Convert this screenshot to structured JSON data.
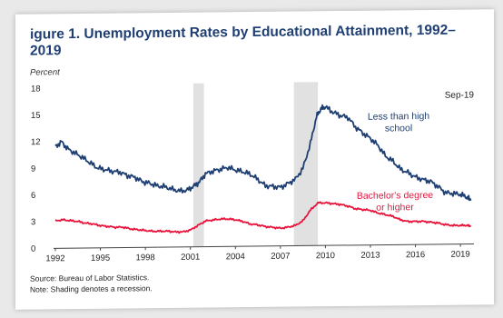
{
  "figure": {
    "title": "igure 1. Unemployment Rates by Educational Attainment, 1992–2019",
    "unit_label": "Percent",
    "source": "Source: Bureau of Labor Statistics.",
    "note": "Note: Shading denotes a recession."
  },
  "chart_data": {
    "type": "line",
    "title": "igure 1. Unemployment Rates by Educational Attainment, 1992–2019",
    "ylabel": "Percent",
    "xlabel": "",
    "ylim": [
      0,
      18
    ],
    "xlim": [
      1992,
      2019.9
    ],
    "y_ticks": [
      0,
      3,
      6,
      9,
      12,
      15,
      18
    ],
    "x_ticks": [
      1992,
      1995,
      1998,
      2001,
      2004,
      2007,
      2010,
      2013,
      2016,
      2019
    ],
    "grid": false,
    "legend": "inline labels",
    "recessions": [
      [
        2001.2,
        2001.9
      ],
      [
        2007.9,
        2009.5
      ]
    ],
    "annotation": "Sep-19",
    "series": [
      {
        "name": "Less than high school",
        "label_lines": [
          "Less than high",
          "school"
        ],
        "color": "#1f3f73",
        "points": [
          [
            1992.0,
            11.4
          ],
          [
            1992.4,
            12.0
          ],
          [
            1992.8,
            11.2
          ],
          [
            1993.3,
            10.7
          ],
          [
            1993.8,
            10.2
          ],
          [
            1994.3,
            9.6
          ],
          [
            1994.8,
            9.0
          ],
          [
            1995.3,
            8.8
          ],
          [
            1995.8,
            8.6
          ],
          [
            1996.3,
            8.5
          ],
          [
            1996.8,
            8.1
          ],
          [
            1997.3,
            7.9
          ],
          [
            1997.8,
            7.4
          ],
          [
            1998.3,
            7.2
          ],
          [
            1998.8,
            6.9
          ],
          [
            1999.3,
            6.8
          ],
          [
            1999.8,
            6.5
          ],
          [
            2000.3,
            6.3
          ],
          [
            2000.8,
            6.4
          ],
          [
            2001.2,
            6.8
          ],
          [
            2001.6,
            7.3
          ],
          [
            2002.0,
            8.2
          ],
          [
            2002.5,
            8.5
          ],
          [
            2003.0,
            8.7
          ],
          [
            2003.5,
            8.9
          ],
          [
            2004.0,
            8.6
          ],
          [
            2004.5,
            8.4
          ],
          [
            2005.0,
            8.1
          ],
          [
            2005.5,
            7.5
          ],
          [
            2006.0,
            6.8
          ],
          [
            2006.5,
            6.7
          ],
          [
            2007.0,
            6.6
          ],
          [
            2007.5,
            7.0
          ],
          [
            2008.0,
            7.5
          ],
          [
            2008.5,
            8.7
          ],
          [
            2009.0,
            11.5
          ],
          [
            2009.4,
            14.5
          ],
          [
            2009.7,
            15.4
          ],
          [
            2010.0,
            15.6
          ],
          [
            2010.5,
            15.0
          ],
          [
            2011.0,
            14.6
          ],
          [
            2011.5,
            14.4
          ],
          [
            2012.0,
            13.3
          ],
          [
            2012.5,
            12.6
          ],
          [
            2013.0,
            12.0
          ],
          [
            2013.5,
            11.2
          ],
          [
            2014.0,
            10.0
          ],
          [
            2014.5,
            9.4
          ],
          [
            2015.0,
            8.5
          ],
          [
            2015.5,
            8.1
          ],
          [
            2016.0,
            7.6
          ],
          [
            2016.5,
            7.3
          ],
          [
            2017.0,
            7.1
          ],
          [
            2017.5,
            6.5
          ],
          [
            2018.0,
            5.8
          ],
          [
            2018.5,
            5.7
          ],
          [
            2019.0,
            5.6
          ],
          [
            2019.4,
            5.3
          ],
          [
            2019.7,
            4.9
          ]
        ]
      },
      {
        "name": "Bachelor's degree or higher",
        "label_lines": [
          "Bachelor's degree",
          "or higher"
        ],
        "color": "#e8143c",
        "points": [
          [
            1992.0,
            3.1
          ],
          [
            1992.5,
            3.2
          ],
          [
            1993.0,
            3.1
          ],
          [
            1993.5,
            3.0
          ],
          [
            1994.0,
            2.8
          ],
          [
            1994.5,
            2.7
          ],
          [
            1995.0,
            2.5
          ],
          [
            1995.5,
            2.4
          ],
          [
            1996.0,
            2.3
          ],
          [
            1996.5,
            2.3
          ],
          [
            1997.0,
            2.1
          ],
          [
            1997.5,
            2.0
          ],
          [
            1998.0,
            1.9
          ],
          [
            1998.5,
            1.8
          ],
          [
            1999.0,
            1.8
          ],
          [
            1999.5,
            1.8
          ],
          [
            2000.0,
            1.7
          ],
          [
            2000.5,
            1.7
          ],
          [
            2001.0,
            1.9
          ],
          [
            2001.5,
            2.4
          ],
          [
            2002.0,
            2.9
          ],
          [
            2002.5,
            3.0
          ],
          [
            2003.0,
            3.1
          ],
          [
            2003.5,
            3.1
          ],
          [
            2004.0,
            3.0
          ],
          [
            2004.5,
            2.8
          ],
          [
            2005.0,
            2.5
          ],
          [
            2005.5,
            2.4
          ],
          [
            2006.0,
            2.2
          ],
          [
            2006.5,
            2.1
          ],
          [
            2007.0,
            2.0
          ],
          [
            2007.5,
            2.1
          ],
          [
            2008.0,
            2.3
          ],
          [
            2008.5,
            2.8
          ],
          [
            2009.0,
            4.0
          ],
          [
            2009.5,
            4.8
          ],
          [
            2010.0,
            4.8
          ],
          [
            2010.5,
            4.7
          ],
          [
            2011.0,
            4.6
          ],
          [
            2011.5,
            4.4
          ],
          [
            2012.0,
            4.1
          ],
          [
            2012.5,
            4.0
          ],
          [
            2013.0,
            3.9
          ],
          [
            2013.5,
            3.6
          ],
          [
            2014.0,
            3.4
          ],
          [
            2014.5,
            3.2
          ],
          [
            2015.0,
            2.8
          ],
          [
            2015.5,
            2.6
          ],
          [
            2016.0,
            2.6
          ],
          [
            2016.5,
            2.6
          ],
          [
            2017.0,
            2.5
          ],
          [
            2017.5,
            2.4
          ],
          [
            2018.0,
            2.2
          ],
          [
            2018.5,
            2.1
          ],
          [
            2019.0,
            2.1
          ],
          [
            2019.4,
            2.1
          ],
          [
            2019.7,
            2.0
          ]
        ]
      }
    ]
  }
}
